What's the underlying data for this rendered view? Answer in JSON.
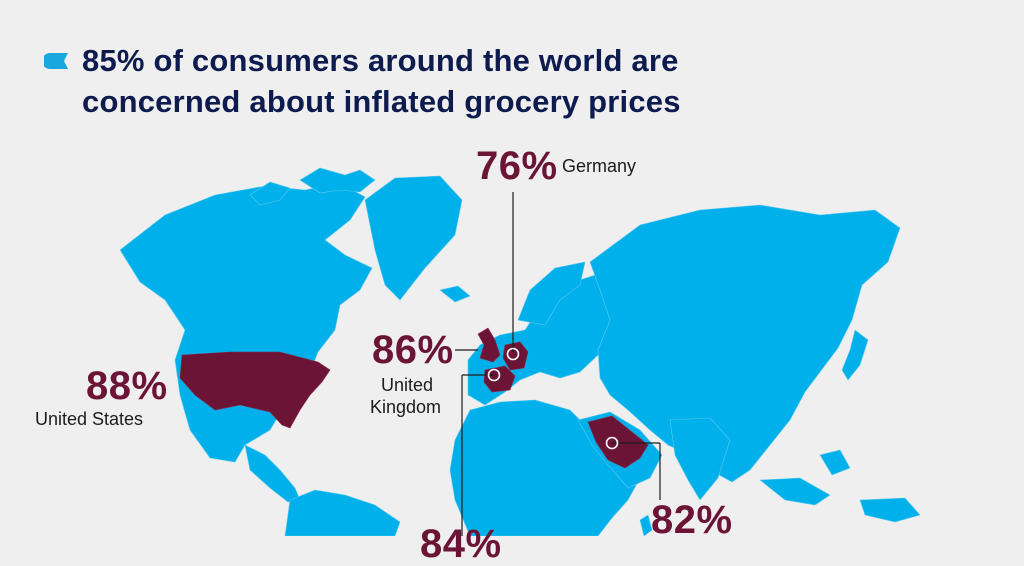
{
  "headline": {
    "line1": "85% of consumers around the world are",
    "line2": "concerned about inflated grocery prices"
  },
  "colors": {
    "background": "#efefef",
    "map": "#00b0ea",
    "highlight": "#6b1435",
    "headline": "#0d1b4e",
    "bullet": "#19a7e0"
  },
  "chart_data": {
    "type": "map",
    "title": "85% of consumers around the world are concerned about inflated grocery prices",
    "unit": "%",
    "data": [
      {
        "country": "United States",
        "value": 88,
        "label": "88%"
      },
      {
        "country": "United Kingdom",
        "value": 86,
        "label": "86%"
      },
      {
        "country": "Germany",
        "value": 76,
        "label": "76%"
      },
      {
        "country": "",
        "value": 82,
        "label": "82%"
      },
      {
        "country": "",
        "value": 84,
        "label": "84%"
      }
    ]
  },
  "labels": {
    "us_pct": "88%",
    "us_name": "United States",
    "uk_pct": "86%",
    "uk_name_1": "United",
    "uk_name_2": "Kingdom",
    "de_pct": "76%",
    "de_name": "Germany",
    "sa_pct": "82%",
    "fr_pct": "84%"
  }
}
